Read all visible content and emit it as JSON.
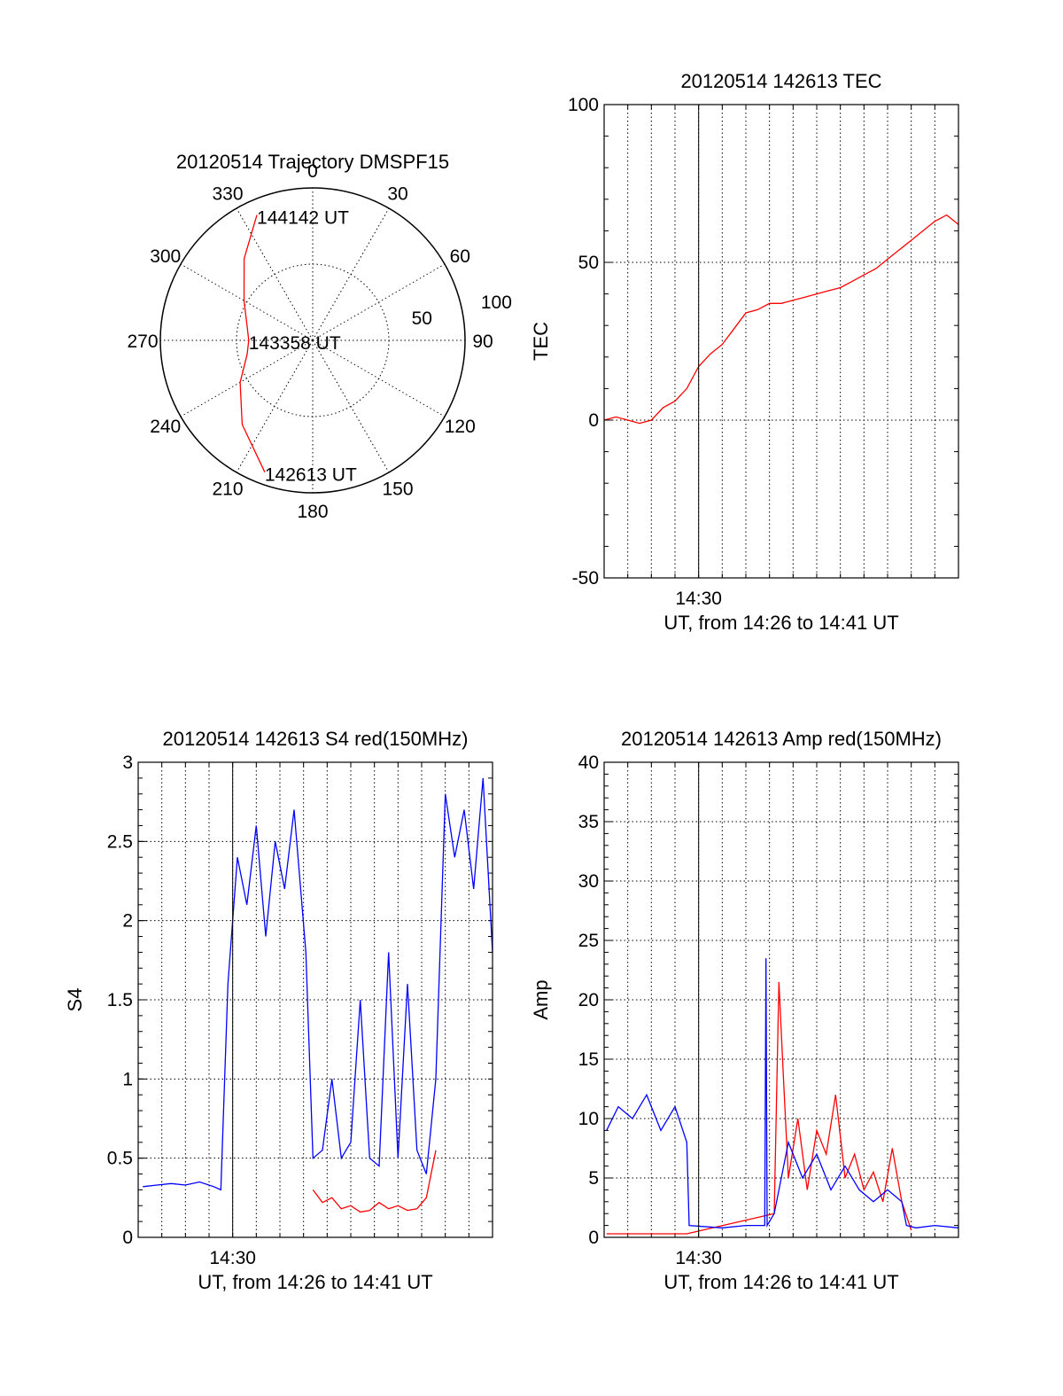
{
  "colors": {
    "red": "#ff0000",
    "blue": "#0000ff",
    "axis": "#000000"
  },
  "chart_data": [
    {
      "type": "polar",
      "title": "20120514 Trajectory DMSPF15",
      "angle_labels": [
        "0",
        "30",
        "60",
        "90",
        "120",
        "150",
        "180",
        "210",
        "240",
        "270",
        "300",
        "330"
      ],
      "angle_values": [
        0,
        30,
        60,
        90,
        120,
        150,
        180,
        210,
        240,
        270,
        300,
        330
      ],
      "radius_labels": [
        "50",
        "100"
      ],
      "radius_values": [
        50,
        100
      ],
      "rlim": [
        0,
        100
      ],
      "series": [
        {
          "color": "red",
          "azimuth": [
            336,
            320,
            300,
            282,
            270,
            258,
            240,
            220,
            200
          ],
          "zenith": [
            90,
            70,
            52,
            44,
            42,
            44,
            55,
            72,
            92
          ]
        }
      ],
      "annotations": [
        {
          "text": "144142 UT",
          "azimuth": 336,
          "zenith": 90
        },
        {
          "text": "143358 UT",
          "azimuth": 270,
          "zenith": 42
        },
        {
          "text": "142613 UT",
          "azimuth": 200,
          "zenith": 92
        }
      ]
    },
    {
      "type": "line",
      "title": "20120514 142613 TEC",
      "xlabel": "UT, from 14:26 to 14:41 UT",
      "ylabel": "TEC",
      "xlim": [
        0,
        15
      ],
      "ylim": [
        -50,
        100
      ],
      "xticks": [
        {
          "value": 4,
          "label": "14:30"
        }
      ],
      "yticks": [
        -50,
        0,
        50,
        100
      ],
      "yticklabels": [
        "-50",
        "0",
        "50",
        "100"
      ],
      "series": [
        {
          "color": "red",
          "x": [
            0,
            0.5,
            1,
            1.5,
            2,
            2.5,
            3,
            3.5,
            4,
            4.5,
            5,
            5.5,
            6,
            6.5,
            7,
            7.5,
            8,
            8.5,
            9,
            9.5,
            10,
            10.5,
            11,
            11.5,
            12,
            12.5,
            13,
            13.5,
            14,
            14.5,
            15
          ],
          "y": [
            0,
            1,
            0,
            -1,
            0,
            4,
            6,
            10,
            17,
            21,
            24,
            29,
            34,
            35,
            37,
            37,
            38,
            39,
            40,
            41,
            42,
            44,
            46,
            48,
            51,
            54,
            57,
            60,
            63,
            65,
            62
          ]
        }
      ]
    },
    {
      "type": "line",
      "title": "20120514 142613 S4 red(150MHz)",
      "xlabel": "UT, from 14:26 to 14:41 UT",
      "ylabel": "S4",
      "xlim": [
        0,
        15
      ],
      "ylim": [
        0,
        3
      ],
      "xticks": [
        {
          "value": 4,
          "label": "14:30"
        }
      ],
      "yticks": [
        0,
        0.5,
        1,
        1.5,
        2,
        2.5,
        3
      ],
      "yticklabels": [
        "0",
        "0.5",
        "1",
        "1.5",
        "2",
        "2.5",
        "3"
      ],
      "series": [
        {
          "color": "red",
          "x": [
            7.4,
            7.8,
            8.2,
            8.6,
            9,
            9.4,
            9.8,
            10.2,
            10.6,
            11,
            11.4,
            11.8,
            12.2,
            12.6
          ],
          "y": [
            0.3,
            0.22,
            0.25,
            0.18,
            0.2,
            0.16,
            0.17,
            0.22,
            0.18,
            0.2,
            0.17,
            0.18,
            0.25,
            0.55
          ]
        },
        {
          "color": "blue",
          "x": [
            0.2,
            0.8,
            1.4,
            2,
            2.6,
            3.2,
            3.5,
            3.8,
            4.2,
            4.6,
            5,
            5.4,
            5.8,
            6.2,
            6.6,
            7.1,
            7.4,
            7.8,
            8.2,
            8.6,
            9,
            9.4,
            9.8,
            10.2,
            10.6,
            11,
            11.4,
            11.8,
            12.2,
            12.6,
            13,
            13.4,
            13.8,
            14.2,
            14.6,
            15
          ],
          "y": [
            0.32,
            0.33,
            0.34,
            0.33,
            0.35,
            0.32,
            0.3,
            1.6,
            2.4,
            2.1,
            2.6,
            1.9,
            2.5,
            2.2,
            2.7,
            1.8,
            0.5,
            0.55,
            1.0,
            0.5,
            0.6,
            1.5,
            0.5,
            0.45,
            1.8,
            0.5,
            1.6,
            0.55,
            0.4,
            1.0,
            2.8,
            2.4,
            2.7,
            2.2,
            2.9,
            1.8
          ]
        }
      ]
    },
    {
      "type": "line",
      "title": "20120514 142613 Amp red(150MHz)",
      "xlabel": "UT, from 14:26 to 14:41 UT",
      "ylabel": "Amp",
      "xlim": [
        0,
        15
      ],
      "ylim": [
        0,
        40
      ],
      "xticks": [
        {
          "value": 4,
          "label": "14:30"
        }
      ],
      "yticks": [
        0,
        5,
        10,
        15,
        20,
        25,
        30,
        35,
        40
      ],
      "yticklabels": [
        "0",
        "5",
        "10",
        "15",
        "20",
        "25",
        "30",
        "35",
        "40"
      ],
      "series": [
        {
          "color": "red",
          "x": [
            0.1,
            3.5,
            7.2,
            7.4,
            7.6,
            7.8,
            8.2,
            8.6,
            9,
            9.4,
            9.8,
            10.2,
            10.6,
            11,
            11.4,
            11.8,
            12.2,
            12.6,
            13
          ],
          "y": [
            0.3,
            0.3,
            2,
            21.5,
            13,
            5,
            10,
            4,
            9,
            7,
            12,
            5,
            7,
            4,
            5.5,
            3,
            7.5,
            3,
            0.6
          ]
        },
        {
          "color": "blue",
          "x": [
            0.1,
            0.6,
            1.2,
            1.8,
            2.4,
            3,
            3.5,
            3.6,
            5,
            6,
            6.8,
            6.85,
            6.9,
            7.2,
            7.8,
            8.4,
            9,
            9.6,
            10.2,
            10.8,
            11.4,
            12,
            12.6,
            12.8,
            13.2,
            14,
            15
          ],
          "y": [
            9,
            11,
            10,
            12,
            9,
            11,
            8,
            1,
            0.8,
            1,
            1,
            23.5,
            1,
            2,
            8,
            5,
            7,
            4,
            6,
            4,
            3,
            4,
            3,
            1,
            0.8,
            1,
            0.8
          ]
        }
      ]
    }
  ]
}
